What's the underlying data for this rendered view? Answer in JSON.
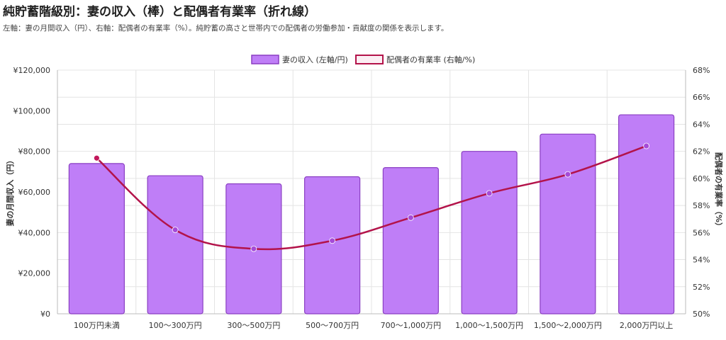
{
  "title": "純貯蓄階級別：妻の収入（棒）と配偶者有業率（折れ線）",
  "subtitle": "左軸：妻の月間収入（円）、右軸：配偶者の有業率（%）。純貯蓄の高さと世帯内での配偶者の労働参加・貢献度の関係を表示します。",
  "chart_data": {
    "type": "bar",
    "categories": [
      "100万円未満",
      "100〜300万円",
      "300〜500万円",
      "500〜700万円",
      "700〜1,000万円",
      "1,000〜1,500万円",
      "1,500〜2,000万円",
      "2,000万円以上"
    ],
    "series": [
      {
        "name": "妻の収入 (左軸/円)",
        "type": "bar",
        "axis": "left",
        "values": [
          74000,
          68000,
          64000,
          67500,
          72000,
          80000,
          88500,
          98000
        ]
      },
      {
        "name": "配偶者の有業率 (右軸/%)",
        "type": "line",
        "axis": "right",
        "values": [
          61.5,
          56.2,
          54.8,
          55.4,
          57.1,
          58.9,
          60.3,
          62.4
        ]
      }
    ],
    "ylabel": "妻の月間収入（円）",
    "y2label": "配偶者の有業率（%）",
    "ylim": [
      0,
      120000
    ],
    "y2lim": [
      50,
      68
    ],
    "yticks": [
      "¥0",
      "¥20,000",
      "¥40,000",
      "¥60,000",
      "¥80,000",
      "¥100,000",
      "¥120,000"
    ],
    "y2ticks": [
      "50%",
      "52%",
      "54%",
      "56%",
      "58%",
      "60%",
      "62%",
      "64%",
      "66%",
      "68%"
    ],
    "legend": "top-center",
    "grid": true,
    "colors": {
      "bar_fill": "#bf7ef7",
      "bar_stroke": "#8a3fc2",
      "line": "#b3134a",
      "marker_start": "#c2185b",
      "marker_end": "#a64ad8"
    }
  }
}
